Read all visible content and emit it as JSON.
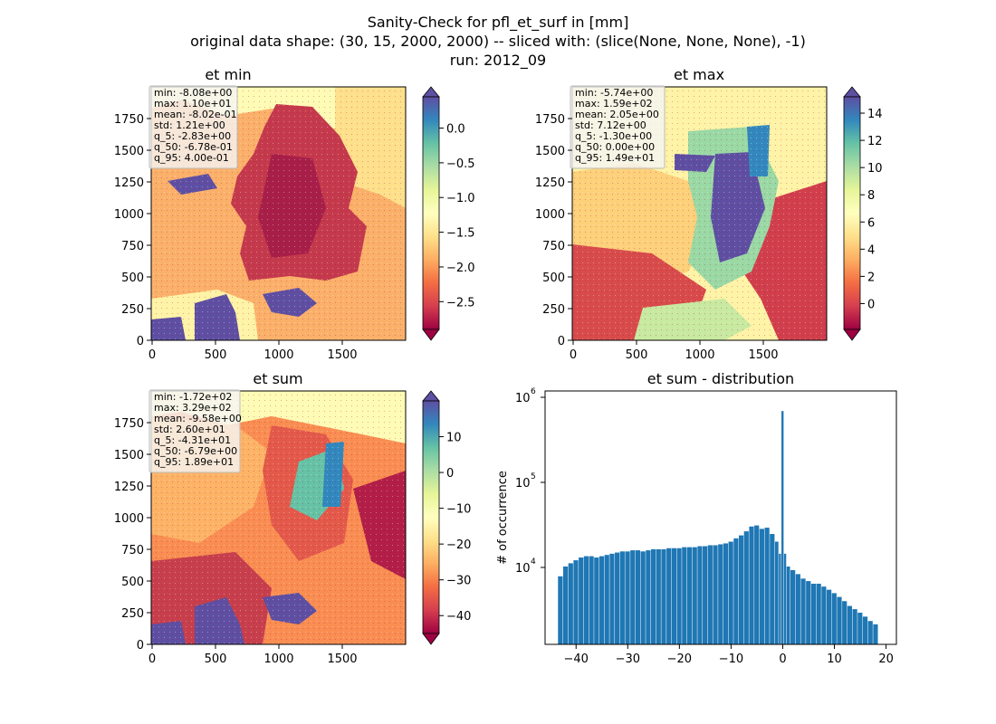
{
  "figure": {
    "title_lines": [
      "Sanity-Check for pfl_et_surf in [mm]",
      "original data shape: (30, 15, 2000, 2000) -- sliced with: (slice(None, None, None), -1)",
      "run: 2012_09"
    ]
  },
  "panels": [
    {
      "title": "et min",
      "x_ticks": [
        "0",
        "500",
        "1000",
        "1500"
      ],
      "y_ticks": [
        "0",
        "250",
        "500",
        "750",
        "1000",
        "1250",
        "1500",
        "1750"
      ],
      "colorbar_ticks": [
        "0.0",
        "−0.5",
        "−1.0",
        "−1.5",
        "−2.0",
        "−2.5"
      ],
      "colorbar_range": [
        -2.9,
        0.45
      ],
      "colorbar_tick_values": [
        0.0,
        -0.5,
        -1.0,
        -1.5,
        -2.0,
        -2.5
      ],
      "stats": [
        "min: -8.08e+00",
        "max: 1.10e+01",
        "mean: -8.02e-01",
        "std: 1.21e+00",
        "q_5: -2.83e+00",
        "q_50: -6.78e-01",
        "q_95: 4.00e-01"
      ]
    },
    {
      "title": "et max",
      "x_ticks": [
        "0",
        "500",
        "1000",
        "1500"
      ],
      "y_ticks": [
        "0",
        "250",
        "500",
        "750",
        "1000",
        "1250",
        "1500",
        "1750"
      ],
      "colorbar_ticks": [
        "14",
        "12",
        "10",
        "8",
        "6",
        "4",
        "2",
        "0"
      ],
      "colorbar_range": [
        -1.9,
        15.2
      ],
      "colorbar_tick_values": [
        14,
        12,
        10,
        8,
        6,
        4,
        2,
        0
      ],
      "stats": [
        "min: -5.74e+00",
        "max: 1.59e+02",
        "mean: 2.05e+00",
        "std: 7.12e+00",
        "q_5: -1.30e+00",
        "q_50: 0.00e+00",
        "q_95: 1.49e+01"
      ]
    },
    {
      "title": "et sum",
      "x_ticks": [
        "0",
        "500",
        "1000",
        "1500"
      ],
      "y_ticks": [
        "0",
        "250",
        "500",
        "750",
        "1000",
        "1250",
        "1500",
        "1750"
      ],
      "colorbar_ticks": [
        "10",
        "0",
        "−10",
        "−20",
        "−30",
        "−40"
      ],
      "colorbar_range": [
        -45,
        20
      ],
      "colorbar_tick_values": [
        10,
        0,
        -10,
        -20,
        -30,
        -40
      ],
      "stats": [
        "min: -1.72e+02",
        "max: 3.29e+02",
        "mean: -9.58e+00",
        "std: 2.60e+01",
        "q_5: -4.31e+01",
        "q_50: -6.79e+00",
        "q_95: 1.89e+01"
      ]
    }
  ],
  "histogram": {
    "title": "et sum - distribution",
    "ylabel": "# of occurrence",
    "x_ticks": [
      "−40",
      "−30",
      "−20",
      "−10",
      "0",
      "10",
      "20"
    ],
    "y_ticks": [
      "10^4",
      "10^5",
      "10^6"
    ]
  },
  "colors": {
    "bar": "#1f77b4",
    "axis": "#000000"
  },
  "chart_data": {
    "type": "bar",
    "title": "et sum - distribution",
    "xlabel": "",
    "ylabel": "# of occurrence",
    "y_scale": "log",
    "xlim": [
      -46,
      22
    ],
    "ylim": [
      1200,
      1400000
    ],
    "bins": [
      {
        "x": -43,
        "y": 8000
      },
      {
        "x": -42,
        "y": 10500
      },
      {
        "x": -41,
        "y": 11500
      },
      {
        "x": -40,
        "y": 12500
      },
      {
        "x": -39,
        "y": 13500
      },
      {
        "x": -38,
        "y": 14000
      },
      {
        "x": -37,
        "y": 14000
      },
      {
        "x": -36,
        "y": 13500
      },
      {
        "x": -35,
        "y": 14000
      },
      {
        "x": -34,
        "y": 14500
      },
      {
        "x": -33,
        "y": 15000
      },
      {
        "x": -32,
        "y": 15500
      },
      {
        "x": -31,
        "y": 16000
      },
      {
        "x": -30,
        "y": 16000
      },
      {
        "x": -29,
        "y": 16500
      },
      {
        "x": -28,
        "y": 16500
      },
      {
        "x": -27,
        "y": 16000
      },
      {
        "x": -26,
        "y": 16500
      },
      {
        "x": -25,
        "y": 17000
      },
      {
        "x": -24,
        "y": 17000
      },
      {
        "x": -23,
        "y": 17000
      },
      {
        "x": -22,
        "y": 17500
      },
      {
        "x": -21,
        "y": 17500
      },
      {
        "x": -20,
        "y": 17500
      },
      {
        "x": -19,
        "y": 18000
      },
      {
        "x": -18,
        "y": 18000
      },
      {
        "x": -17,
        "y": 18000
      },
      {
        "x": -16,
        "y": 18500
      },
      {
        "x": -15,
        "y": 18500
      },
      {
        "x": -14,
        "y": 19000
      },
      {
        "x": -13,
        "y": 19000
      },
      {
        "x": -12,
        "y": 19500
      },
      {
        "x": -11,
        "y": 20000
      },
      {
        "x": -10,
        "y": 21000
      },
      {
        "x": -9,
        "y": 23000
      },
      {
        "x": -8,
        "y": 25000
      },
      {
        "x": -7,
        "y": 28000
      },
      {
        "x": -6,
        "y": 32000
      },
      {
        "x": -5,
        "y": 33000
      },
      {
        "x": -4,
        "y": 30000
      },
      {
        "x": -3,
        "y": 31000
      },
      {
        "x": -2,
        "y": 26000
      },
      {
        "x": -1,
        "y": 21000
      },
      {
        "x": -0.5,
        "y": 15000
      },
      {
        "x": 0,
        "y": 800000
      },
      {
        "x": 0.5,
        "y": 15000
      },
      {
        "x": 1,
        "y": 10500
      },
      {
        "x": 2,
        "y": 9500
      },
      {
        "x": 3,
        "y": 8500
      },
      {
        "x": 4,
        "y": 7500
      },
      {
        "x": 5,
        "y": 7000
      },
      {
        "x": 6,
        "y": 6500
      },
      {
        "x": 7,
        "y": 6500
      },
      {
        "x": 8,
        "y": 6000
      },
      {
        "x": 9,
        "y": 5500
      },
      {
        "x": 10,
        "y": 5000
      },
      {
        "x": 11,
        "y": 4500
      },
      {
        "x": 12,
        "y": 4000
      },
      {
        "x": 13,
        "y": 3500
      },
      {
        "x": 14,
        "y": 3200
      },
      {
        "x": 15,
        "y": 2900
      },
      {
        "x": 16,
        "y": 2600
      },
      {
        "x": 17,
        "y": 2300
      },
      {
        "x": 18,
        "y": 2100
      }
    ]
  }
}
